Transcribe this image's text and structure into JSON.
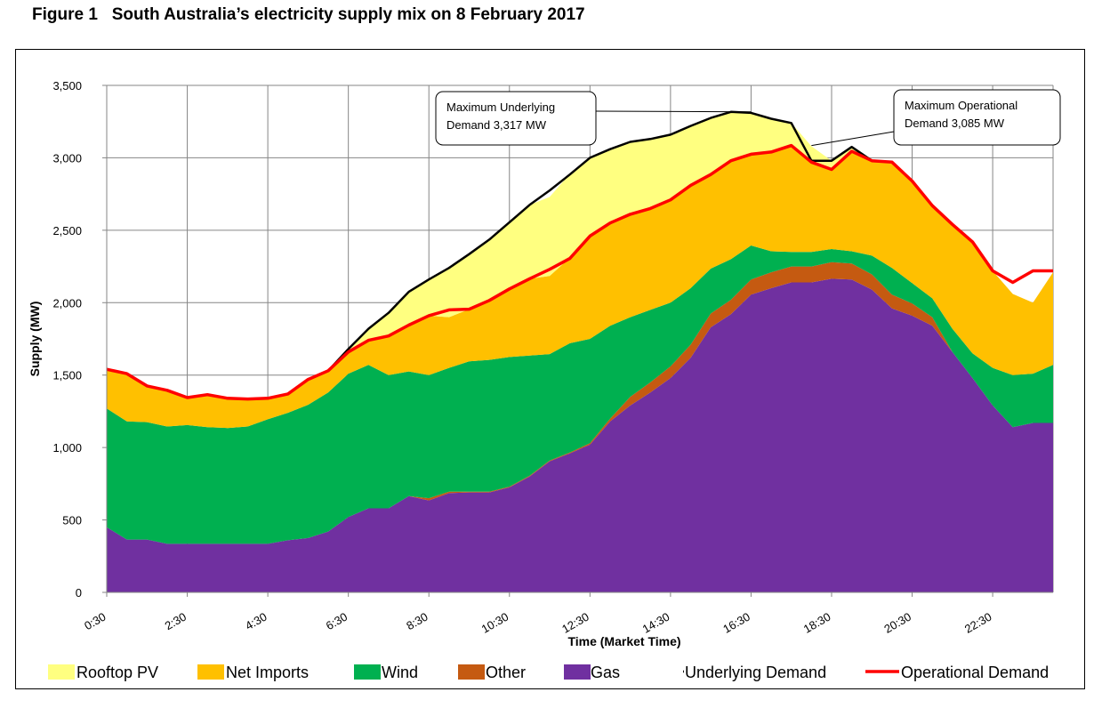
{
  "figure": {
    "number": "Figure 1",
    "title": "South Australia’s electricity supply mix on 8 February 2017"
  },
  "chart_data": {
    "type": "area",
    "title": "South Australia’s electricity supply mix on 8 February 2017",
    "xlabel": "Time (Market Time)",
    "ylabel": "Supply (MW)",
    "ylim": [
      0,
      3500
    ],
    "yticks": [
      0,
      500,
      1000,
      1500,
      2000,
      2500,
      3000,
      3500
    ],
    "ytick_labels": [
      "0",
      "500",
      "1,000",
      "1,500",
      "2,000",
      "2,500",
      "3,000",
      "3,500"
    ],
    "xtick_labels": [
      "0:30",
      "2:30",
      "4:30",
      "6:30",
      "8:30",
      "10:30",
      "12:30",
      "14:30",
      "16:30",
      "18:30",
      "20:30",
      "22:30"
    ],
    "x_hours": [
      0.5,
      1,
      1.5,
      2,
      2.5,
      3,
      3.5,
      4,
      4.5,
      5,
      5.5,
      6,
      6.5,
      7,
      7.5,
      8,
      8.5,
      9,
      9.5,
      10,
      10.5,
      11,
      11.5,
      12,
      12.5,
      13,
      13.5,
      14,
      14.5,
      15,
      15.5,
      16,
      16.5,
      17,
      17.5,
      18,
      18.5,
      19,
      19.5,
      20,
      20.5,
      21,
      21.5,
      22,
      22.5,
      23,
      23.5,
      24
    ],
    "grid": true,
    "legend_position": "bottom",
    "series": [
      {
        "name": "Gas",
        "kind": "area",
        "color": "#7030A0",
        "values": [
          450,
          365,
          365,
          335,
          335,
          335,
          335,
          335,
          335,
          360,
          375,
          420,
          520,
          580,
          580,
          665,
          635,
          685,
          690,
          690,
          725,
          800,
          905,
          960,
          1020,
          1180,
          1290,
          1380,
          1480,
          1620,
          1830,
          1920,
          2055,
          2100,
          2140,
          2140,
          2165,
          2160,
          2090,
          1960,
          1910,
          1840,
          1660,
          1480,
          1290,
          1140,
          1170,
          1170
        ]
      },
      {
        "name": "Other",
        "kind": "area",
        "color": "#C55A11",
        "values": [
          0,
          0,
          0,
          0,
          0,
          0,
          0,
          0,
          0,
          0,
          0,
          0,
          0,
          0,
          0,
          0,
          15,
          10,
          5,
          5,
          5,
          5,
          5,
          5,
          10,
          20,
          60,
          70,
          80,
          90,
          95,
          100,
          105,
          110,
          110,
          110,
          115,
          110,
          105,
          95,
          85,
          60,
          0,
          0,
          0,
          0,
          0,
          0
        ]
      },
      {
        "name": "Wind",
        "kind": "area",
        "color": "#00B050",
        "values": [
          820,
          815,
          810,
          810,
          820,
          805,
          800,
          810,
          860,
          880,
          920,
          960,
          990,
          990,
          920,
          860,
          850,
          855,
          900,
          910,
          895,
          830,
          735,
          755,
          720,
          640,
          550,
          500,
          440,
          390,
          310,
          280,
          235,
          145,
          100,
          100,
          90,
          85,
          130,
          185,
          140,
          130,
          160,
          170,
          260,
          360,
          340,
          400
        ]
      },
      {
        "name": "Net Imports",
        "kind": "area",
        "color": "#FFC000",
        "values": [
          270,
          330,
          250,
          250,
          190,
          225,
          205,
          190,
          145,
          130,
          175,
          150,
          150,
          170,
          270,
          320,
          410,
          350,
          360,
          410,
          470,
          530,
          540,
          590,
          710,
          710,
          710,
          700,
          710,
          710,
          650,
          680,
          630,
          685,
          740,
          620,
          550,
          700,
          655,
          735,
          705,
          640,
          720,
          770,
          670,
          560,
          490,
          640
        ]
      },
      {
        "name": "Rooftop PV",
        "kind": "area",
        "color": "#FFFF80",
        "values": [
          0,
          0,
          0,
          0,
          0,
          0,
          0,
          0,
          0,
          0,
          0,
          0,
          20,
          80,
          160,
          230,
          250,
          340,
          380,
          420,
          460,
          510,
          545,
          580,
          540,
          510,
          500,
          480,
          450,
          410,
          390,
          340,
          285,
          230,
          150,
          110,
          60,
          20,
          0,
          0,
          0,
          0,
          0,
          0,
          0,
          0,
          0,
          0
        ]
      },
      {
        "name": "Underlying Demand",
        "kind": "line",
        "color": "#000000",
        "values": [
          1540,
          1510,
          1425,
          1395,
          1345,
          1365,
          1340,
          1335,
          1340,
          1370,
          1470,
          1530,
          1680,
          1820,
          1930,
          2075,
          2160,
          2240,
          2335,
          2435,
          2555,
          2675,
          2775,
          2885,
          3000,
          3060,
          3110,
          3130,
          3160,
          3220,
          3275,
          3317,
          3310,
          3270,
          3240,
          2980,
          2980,
          3075,
          2980,
          2970,
          2840,
          2670,
          2540,
          2420,
          2220,
          2140,
          2220,
          2220
        ]
      },
      {
        "name": "Operational Demand",
        "kind": "line",
        "color": "#FF0000",
        "values": [
          1540,
          1510,
          1425,
          1395,
          1345,
          1365,
          1340,
          1335,
          1340,
          1370,
          1470,
          1530,
          1660,
          1740,
          1770,
          1845,
          1910,
          1950,
          1955,
          2015,
          2095,
          2165,
          2230,
          2305,
          2460,
          2550,
          2610,
          2650,
          2710,
          2810,
          2885,
          2980,
          3025,
          3040,
          3085,
          2970,
          2920,
          3045,
          2980,
          2970,
          2840,
          2670,
          2540,
          2420,
          2220,
          2140,
          2220,
          2220
        ]
      }
    ],
    "annotations": [
      {
        "line1": "Maximum Underlying",
        "line2": "Demand 3,317 MW",
        "target_hour": 16.5,
        "target_value": 3317
      },
      {
        "line1": "Maximum Operational",
        "line2": "Demand 3,085 MW",
        "target_hour": 18,
        "target_value": 3085
      }
    ],
    "legend": [
      "Rooftop PV",
      "Net Imports",
      "Wind",
      "Other",
      "Gas",
      "Underlying Demand",
      "Operational Demand"
    ]
  }
}
